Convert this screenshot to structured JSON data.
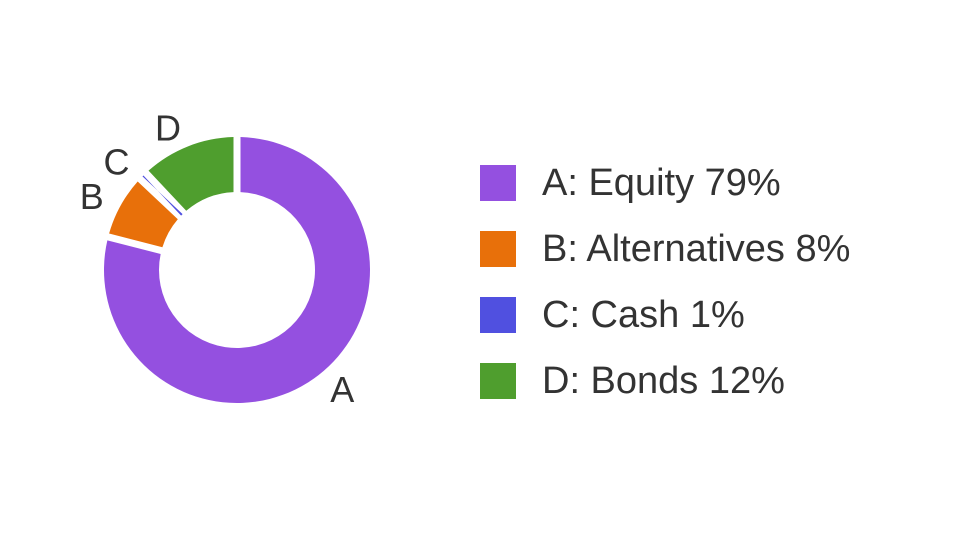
{
  "chart_data": {
    "type": "pie",
    "variant": "donut",
    "title": "",
    "legend_position": "right",
    "slices": [
      {
        "label": "A",
        "legend": "A: Equity 79%",
        "value": 79,
        "color": "#9450e0"
      },
      {
        "label": "B",
        "legend": "B: Alternatives 8%",
        "value": 8,
        "color": "#e8700a"
      },
      {
        "label": "C",
        "legend": "C: Cash 1%",
        "value": 1,
        "color": "#5050e0"
      },
      {
        "label": "D",
        "legend": "D: Bonds 12%",
        "value": 12,
        "color": "#4f9e2e"
      }
    ]
  }
}
